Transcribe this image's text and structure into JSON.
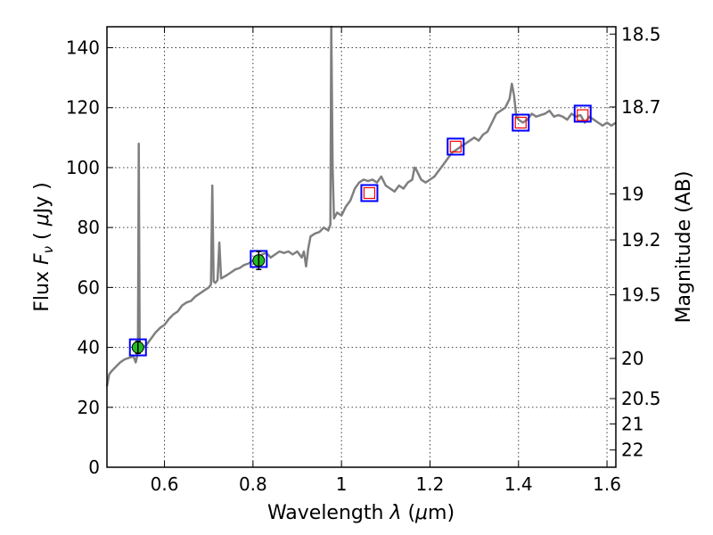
{
  "chart_data": {
    "type": "line",
    "xlabel": "Wavelength  λ (μm)",
    "ylabel": "Flux  F_ν  ( μJy )",
    "ylabel_right": "Magnitude (AB)",
    "xlim": [
      0.47,
      1.62
    ],
    "ylim": [
      0,
      147
    ],
    "grid": true,
    "x_ticks": [
      {
        "value": 0.6,
        "label": "0.6"
      },
      {
        "value": 0.8,
        "label": "0.8"
      },
      {
        "value": 1.0,
        "label": "1"
      },
      {
        "value": 1.2,
        "label": "1.2"
      },
      {
        "value": 1.4,
        "label": "1.4"
      },
      {
        "value": 1.6,
        "label": "1.6"
      }
    ],
    "y_ticks": [
      {
        "value": 0,
        "label": "0"
      },
      {
        "value": 20,
        "label": "20"
      },
      {
        "value": 40,
        "label": "40"
      },
      {
        "value": 60,
        "label": "60"
      },
      {
        "value": 80,
        "label": "80"
      },
      {
        "value": 100,
        "label": "100"
      },
      {
        "value": 120,
        "label": "120"
      },
      {
        "value": 140,
        "label": "140"
      }
    ],
    "mag_ticks": [
      {
        "mag": 18.5,
        "label": "18.5"
      },
      {
        "mag": 18.7,
        "label": "18.7"
      },
      {
        "mag": 19.0,
        "label": "19"
      },
      {
        "mag": 19.2,
        "label": "19.2"
      },
      {
        "mag": 19.5,
        "label": "19.5"
      },
      {
        "mag": 20.0,
        "label": "20"
      },
      {
        "mag": 20.5,
        "label": "20.5"
      },
      {
        "mag": 21.0,
        "label": "21"
      },
      {
        "mag": 22.0,
        "label": "22"
      }
    ],
    "series": [
      {
        "style": "spectrum",
        "color": "#7f7f7f",
        "points": [
          [
            0.47,
            27
          ],
          [
            0.475,
            31
          ],
          [
            0.48,
            32
          ],
          [
            0.49,
            33.5
          ],
          [
            0.5,
            35
          ],
          [
            0.51,
            36
          ],
          [
            0.52,
            36.5
          ],
          [
            0.53,
            37
          ],
          [
            0.535,
            35
          ],
          [
            0.538,
            37
          ],
          [
            0.54,
            39
          ],
          [
            0.542,
            108
          ],
          [
            0.544,
            40
          ],
          [
            0.55,
            39.5
          ],
          [
            0.56,
            41
          ],
          [
            0.57,
            43
          ],
          [
            0.58,
            45
          ],
          [
            0.59,
            46.5
          ],
          [
            0.6,
            47.5
          ],
          [
            0.61,
            49.5
          ],
          [
            0.62,
            51
          ],
          [
            0.63,
            52
          ],
          [
            0.64,
            54
          ],
          [
            0.65,
            55
          ],
          [
            0.66,
            55.5
          ],
          [
            0.67,
            57
          ],
          [
            0.68,
            58
          ],
          [
            0.69,
            59
          ],
          [
            0.7,
            60
          ],
          [
            0.705,
            61
          ],
          [
            0.708,
            94
          ],
          [
            0.711,
            62
          ],
          [
            0.715,
            61.5
          ],
          [
            0.72,
            62.5
          ],
          [
            0.724,
            75
          ],
          [
            0.728,
            63
          ],
          [
            0.74,
            64
          ],
          [
            0.75,
            65
          ],
          [
            0.76,
            66
          ],
          [
            0.77,
            66.5
          ],
          [
            0.78,
            67.5
          ],
          [
            0.79,
            68
          ],
          [
            0.8,
            69
          ],
          [
            0.81,
            70
          ],
          [
            0.82,
            71
          ],
          [
            0.83,
            71.5
          ],
          [
            0.84,
            70
          ],
          [
            0.85,
            71
          ],
          [
            0.86,
            72
          ],
          [
            0.87,
            71.5
          ],
          [
            0.88,
            72
          ],
          [
            0.89,
            71
          ],
          [
            0.9,
            72
          ],
          [
            0.91,
            70
          ],
          [
            0.915,
            72
          ],
          [
            0.92,
            67
          ],
          [
            0.925,
            73
          ],
          [
            0.93,
            77
          ],
          [
            0.94,
            78
          ],
          [
            0.95,
            78.5
          ],
          [
            0.96,
            80
          ],
          [
            0.97,
            79
          ],
          [
            0.975,
            81
          ],
          [
            0.977,
            147
          ],
          [
            0.98,
            100
          ],
          [
            0.983,
            83
          ],
          [
            0.99,
            85
          ],
          [
            1.0,
            84
          ],
          [
            1.01,
            87
          ],
          [
            1.02,
            89
          ],
          [
            1.03,
            93
          ],
          [
            1.04,
            95
          ],
          [
            1.05,
            96
          ],
          [
            1.06,
            95.5
          ],
          [
            1.07,
            96
          ],
          [
            1.08,
            95
          ],
          [
            1.09,
            97
          ],
          [
            1.1,
            94
          ],
          [
            1.11,
            93
          ],
          [
            1.12,
            92
          ],
          [
            1.13,
            94
          ],
          [
            1.14,
            93
          ],
          [
            1.15,
            95
          ],
          [
            1.16,
            96
          ],
          [
            1.165,
            100
          ],
          [
            1.17,
            99
          ],
          [
            1.18,
            96
          ],
          [
            1.19,
            95
          ],
          [
            1.2,
            96
          ],
          [
            1.21,
            97
          ],
          [
            1.22,
            99
          ],
          [
            1.23,
            101
          ],
          [
            1.24,
            103
          ],
          [
            1.25,
            105
          ],
          [
            1.26,
            106
          ],
          [
            1.27,
            107
          ],
          [
            1.28,
            108
          ],
          [
            1.29,
            109
          ],
          [
            1.3,
            110
          ],
          [
            1.31,
            109
          ],
          [
            1.32,
            111
          ],
          [
            1.33,
            112
          ],
          [
            1.34,
            115
          ],
          [
            1.35,
            118
          ],
          [
            1.36,
            119
          ],
          [
            1.37,
            120
          ],
          [
            1.38,
            123
          ],
          [
            1.385,
            128
          ],
          [
            1.39,
            124
          ],
          [
            1.395,
            117
          ],
          [
            1.4,
            116
          ],
          [
            1.41,
            115
          ],
          [
            1.42,
            116
          ],
          [
            1.43,
            118
          ],
          [
            1.44,
            117
          ],
          [
            1.45,
            117.5
          ],
          [
            1.46,
            118
          ],
          [
            1.47,
            119
          ],
          [
            1.48,
            117
          ],
          [
            1.49,
            117.5
          ],
          [
            1.5,
            117
          ],
          [
            1.51,
            116
          ],
          [
            1.52,
            118
          ],
          [
            1.53,
            117
          ],
          [
            1.54,
            117.5
          ],
          [
            1.55,
            115
          ],
          [
            1.56,
            117
          ],
          [
            1.57,
            116
          ],
          [
            1.58,
            115
          ],
          [
            1.59,
            114
          ],
          [
            1.6,
            115
          ],
          [
            1.61,
            114
          ],
          [
            1.62,
            115
          ]
        ]
      }
    ],
    "photometry_detected": [
      {
        "x": 0.54,
        "y": 40,
        "err": 2,
        "color": "#22bb22"
      },
      {
        "x": 0.813,
        "y": 69,
        "err": 3,
        "color": "#22bb22"
      }
    ],
    "model_boxes": [
      {
        "x": 0.54,
        "y": 40
      },
      {
        "x": 0.813,
        "y": 69.5
      },
      {
        "x": 1.063,
        "y": 91.5
      },
      {
        "x": 1.258,
        "y": 107
      },
      {
        "x": 1.405,
        "y": 115
      },
      {
        "x": 1.545,
        "y": 118
      }
    ],
    "model_box_color": "#0000ff",
    "upper_limits": [
      {
        "x": 1.063,
        "y": 91.5
      },
      {
        "x": 1.258,
        "y": 107
      },
      {
        "x": 1.405,
        "y": 115
      },
      {
        "x": 1.545,
        "y": 117.5
      }
    ],
    "upper_limit_color": "#ff0000"
  }
}
